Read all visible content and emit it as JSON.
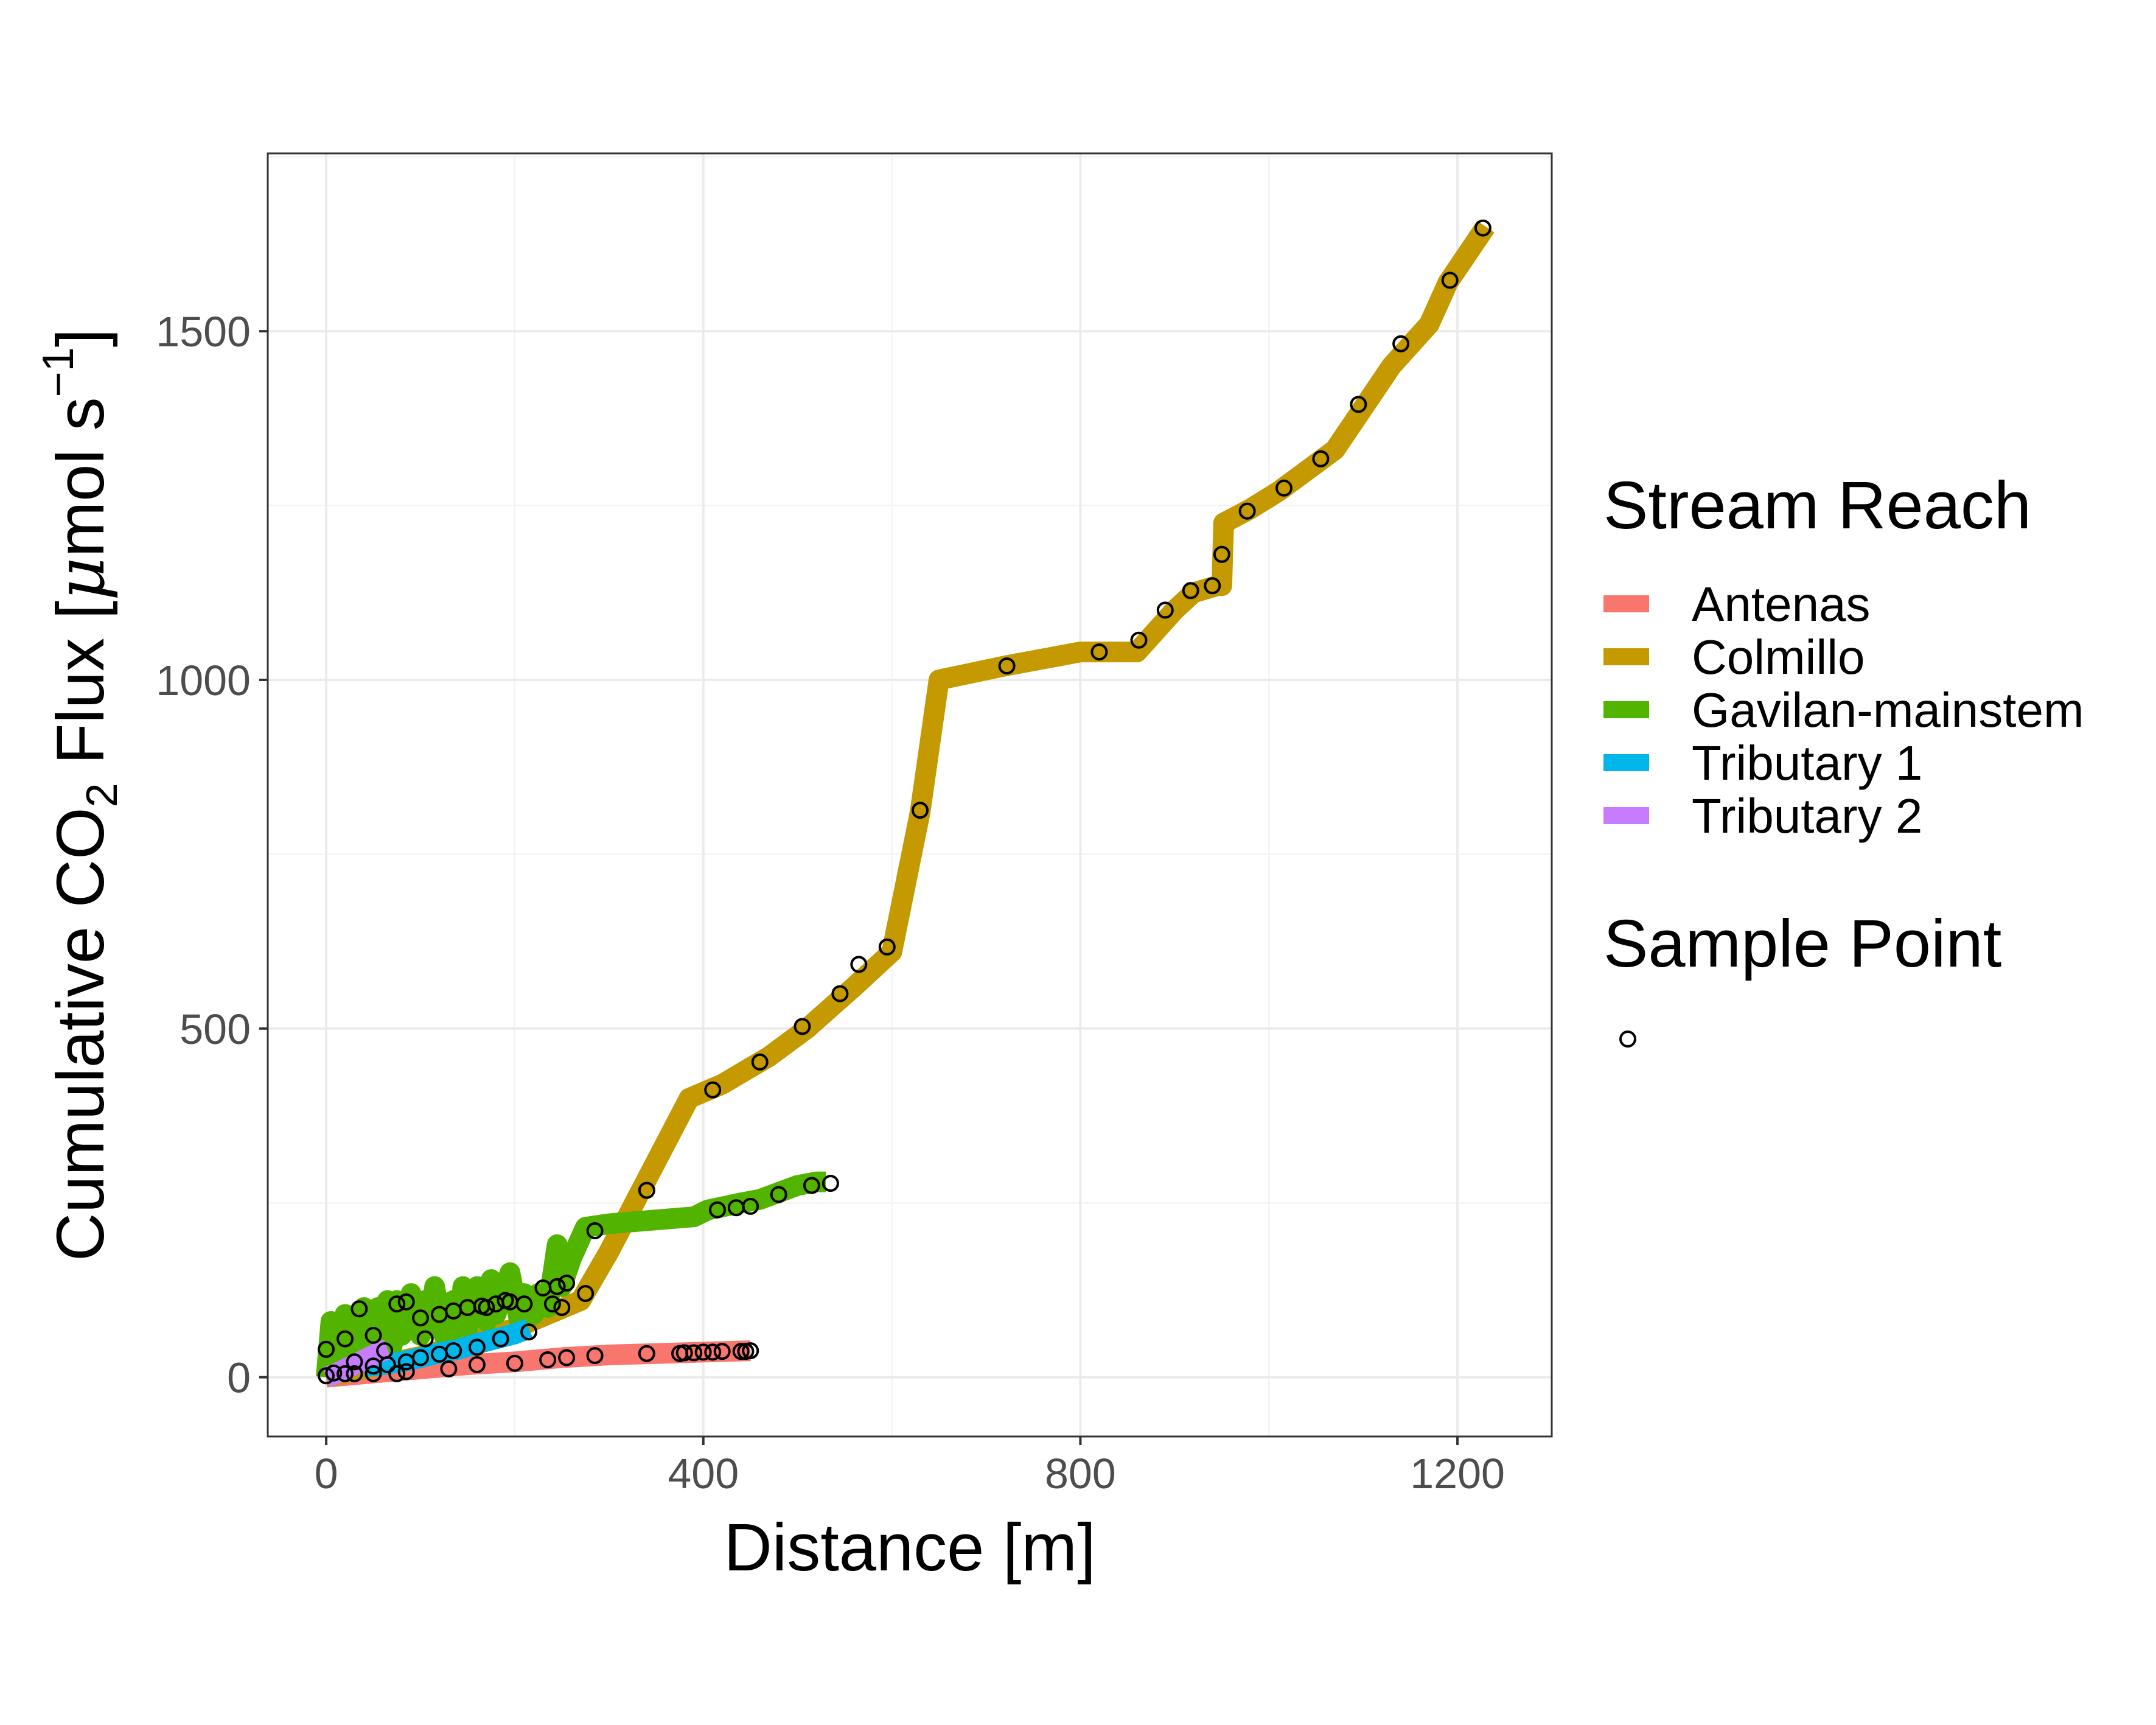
{
  "chart_data": {
    "type": "line",
    "title": "",
    "xlabel": "Distance [m]",
    "ylabel": {
      "text_1": "Cumulative CO",
      "sub_1": "2",
      "text_2": " Flux [",
      "mu": "μ",
      "text_3": "mol s",
      "sup_1": "−1",
      "text_4": "]"
    },
    "xlim": [
      -62,
      1300
    ],
    "ylim": [
      -85,
      1755
    ],
    "xticks": [
      0,
      400,
      800,
      1200
    ],
    "xtick_labels": [
      "0",
      "400",
      "800",
      "1200"
    ],
    "yticks": [
      0,
      500,
      1000,
      1500
    ],
    "ytick_labels": [
      "0",
      "500",
      "1000",
      "1500"
    ],
    "grid": true,
    "legend_position": "right",
    "legend": {
      "color_title": "Stream Reach",
      "point_title": "Sample Point"
    },
    "series": [
      {
        "name": "Antenas",
        "color": "#F8766D",
        "x": [
          0,
          50,
          100,
          150,
          200,
          250,
          300,
          350,
          400,
          450
        ],
        "y": [
          0,
          6,
          12,
          18,
          22,
          28,
          32,
          34,
          36,
          38
        ],
        "points_x": [
          20,
          30,
          50,
          75,
          85,
          130,
          160,
          200,
          235,
          255,
          285,
          340,
          375,
          380,
          390,
          400,
          410,
          420,
          440,
          445,
          450
        ],
        "points_y": [
          5,
          5,
          5,
          5,
          8,
          12,
          18,
          20,
          25,
          28,
          31,
          34,
          34,
          35,
          35,
          36,
          36,
          37,
          37,
          37,
          38
        ]
      },
      {
        "name": "Colmillo",
        "color": "#C49A00",
        "x": [
          0,
          100,
          200,
          270,
          300,
          385,
          420,
          470,
          510,
          560,
          600,
          630,
          650,
          720,
          800,
          860,
          900,
          920,
          945,
          950,
          952,
          980,
          1010,
          1040,
          1070,
          1100,
          1130,
          1170,
          1190,
          1230
        ],
        "y": [
          0,
          30,
          70,
          110,
          180,
          400,
          420,
          460,
          500,
          560,
          610,
          810,
          1000,
          1020,
          1040,
          1040,
          1100,
          1125,
          1135,
          1135,
          1225,
          1245,
          1270,
          1300,
          1330,
          1390,
          1450,
          1510,
          1570,
          1650
        ],
        "points_x": [
          250,
          275,
          340,
          410,
          460,
          505,
          545,
          565,
          595,
          630,
          722,
          820,
          862,
          890,
          917,
          940,
          950,
          977,
          1016,
          1055,
          1095,
          1140,
          1192,
          1227
        ],
        "points_y": [
          100,
          120,
          268,
          412,
          452,
          503,
          550,
          592,
          617,
          813,
          1020,
          1040,
          1057,
          1100,
          1128,
          1135,
          1180,
          1242,
          1275,
          1317,
          1395,
          1482,
          1573,
          1648
        ]
      },
      {
        "name": "Gavilan-mainstem",
        "color": "#53B400",
        "x": [
          0,
          5,
          10,
          20,
          30,
          40,
          50,
          55,
          60,
          65,
          70,
          75,
          80,
          90,
          100,
          105,
          110,
          115,
          125,
          135,
          140,
          145,
          150,
          160,
          170,
          175,
          180,
          195,
          205,
          210,
          220,
          225,
          235,
          245,
          250,
          260,
          270,
          275,
          300,
          390,
          405,
          440,
          460,
          480,
          500,
          520,
          530
        ],
        "y": [
          0,
          80,
          20,
          90,
          30,
          100,
          40,
          100,
          50,
          110,
          45,
          110,
          60,
          120,
          60,
          110,
          70,
          130,
          60,
          110,
          60,
          130,
          70,
          130,
          80,
          140,
          90,
          150,
          80,
          120,
          90,
          120,
          100,
          190,
          130,
          170,
          200,
          215,
          220,
          230,
          240,
          250,
          255,
          265,
          275,
          280,
          280
        ],
        "points_x": [
          0,
          20,
          35,
          50,
          75,
          85,
          100,
          105,
          120,
          135,
          150,
          165,
          170,
          180,
          190,
          195,
          210,
          230,
          240,
          245,
          255,
          285,
          415,
          435,
          450,
          480,
          515,
          535
        ],
        "points_y": [
          40,
          55,
          98,
          60,
          105,
          108,
          85,
          55,
          90,
          95,
          100,
          102,
          100,
          105,
          110,
          108,
          105,
          128,
          105,
          130,
          135,
          210,
          240,
          243,
          245,
          262,
          275,
          278
        ]
      },
      {
        "name": "Tributary 1",
        "color": "#00B6EB",
        "x": [
          40,
          60,
          80,
          100,
          120,
          140,
          160,
          180,
          200,
          215
        ],
        "y": [
          15,
          18,
          22,
          28,
          35,
          40,
          48,
          55,
          62,
          70
        ],
        "points_x": [
          50,
          65,
          85,
          100,
          120,
          135,
          160,
          185,
          215
        ],
        "points_y": [
          16,
          18,
          22,
          28,
          33,
          38,
          43,
          55,
          65
        ]
      },
      {
        "name": "Tributary 2",
        "color": "#C77CFF",
        "x": [
          0,
          10,
          25,
          40,
          55,
          65
        ],
        "y": [
          0,
          5,
          15,
          25,
          35,
          40
        ],
        "points_x": [
          0,
          8,
          30,
          62
        ],
        "points_y": [
          2,
          6,
          22,
          38
        ]
      }
    ]
  }
}
